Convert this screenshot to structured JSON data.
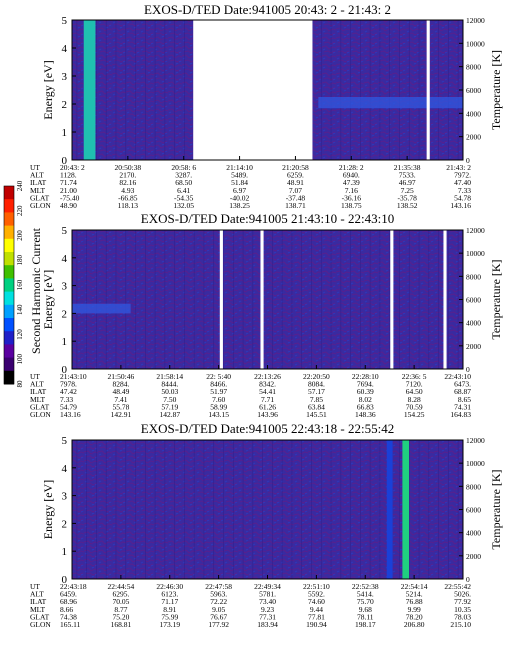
{
  "colorbar": {
    "label": "Second Harmonic Current",
    "ticks": [
      "80",
      "100",
      "120",
      "140",
      "160",
      "180",
      "200",
      "220",
      "240"
    ],
    "colors": [
      "#000000",
      "#3a0070",
      "#5a00a0",
      "#2020c8",
      "#0050ff",
      "#00a0ff",
      "#00e0e0",
      "#00d080",
      "#40c000",
      "#c0e000",
      "#ffff00",
      "#ffb000",
      "#ff6000",
      "#ff2000",
      "#c00000"
    ]
  },
  "row_labels": [
    "UT",
    "ALT",
    "ILAT",
    "MLT",
    "GLAT",
    "GLON"
  ],
  "chart_data": [
    {
      "type": "heatmap",
      "title": "EXOS-D/TED   Date:941005  20:43: 2 - 21:43: 2",
      "ylabel": "Energy [eV]",
      "y2label": "Temperature [K]",
      "ylim": [
        0,
        5
      ],
      "y_ticks": [
        "0",
        "1",
        "2",
        "3",
        "4",
        "5"
      ],
      "y2lim": [
        0,
        12000
      ],
      "y2_ticks": [
        "0",
        "2000",
        "4000",
        "6000",
        "8000",
        "10000",
        "12000"
      ],
      "background": "#3a2aa0",
      "data_gaps": [
        [
          0.31,
          0.615
        ],
        [
          0.907,
          0.915
        ]
      ],
      "bands": [
        {
          "x": [
            0.03,
            0.06
          ],
          "y": [
            0,
            5
          ],
          "color": "#20c0b0"
        }
      ],
      "streaks": [
        {
          "x": [
            0.63,
            1.0
          ],
          "y": [
            1.85,
            2.25
          ],
          "color": "#3058e0"
        }
      ],
      "columns": [
        {
          "UT": "20:43: 2",
          "ALT": "1128.",
          "ILAT": "71.74",
          "MLT": "21.00",
          "GLAT": "-75.40",
          "GLON": "48.90"
        },
        {
          "UT": "20:50:38",
          "ALT": "2170.",
          "ILAT": "82.16",
          "MLT": "4.93",
          "GLAT": "-66.85",
          "GLON": "118.13"
        },
        {
          "UT": "20:58: 6",
          "ALT": "3287.",
          "ILAT": "68.50",
          "MLT": "6.41",
          "GLAT": "-54.35",
          "GLON": "132.05"
        },
        {
          "UT": "21:14:10",
          "ALT": "5489.",
          "ILAT": "51.84",
          "MLT": "6.97",
          "GLAT": "-40.02",
          "GLON": "138.25"
        },
        {
          "UT": "21:20:58",
          "ALT": "6259.",
          "ILAT": "48.91",
          "MLT": "7.07",
          "GLAT": "-37.48",
          "GLON": "138.71"
        },
        {
          "UT": "21:28: 2",
          "ALT": "6940.",
          "ILAT": "47.39",
          "MLT": "7.16",
          "GLAT": "-36.16",
          "GLON": "138.75"
        },
        {
          "UT": "21:35:38",
          "ALT": "7533.",
          "ILAT": "46.97",
          "MLT": "7.25",
          "GLAT": "-35.78",
          "GLON": "138.52"
        },
        {
          "UT": "21:43: 2",
          "ALT": "7972.",
          "ILAT": "47.40",
          "MLT": "7.33",
          "GLAT": "54.78",
          "GLON": "143.16"
        }
      ]
    },
    {
      "type": "heatmap",
      "title": "EXOS-D/TED   Date:941005  21:43:10 - 22:43:10",
      "ylabel": "Energy [eV]",
      "y2label": "Temperature [K]",
      "ylim": [
        0,
        5
      ],
      "y_ticks": [
        "0",
        "1",
        "2",
        "3",
        "4",
        "5"
      ],
      "y2lim": [
        0,
        12000
      ],
      "y2_ticks": [
        "0",
        "2000",
        "4000",
        "6000",
        "8000",
        "10000",
        "12000"
      ],
      "background": "#3a2aa0",
      "data_gaps": [
        [
          0.378,
          0.386
        ],
        [
          0.482,
          0.49
        ],
        [
          0.814,
          0.822
        ],
        [
          0.95,
          0.958
        ]
      ],
      "bands": [],
      "streaks": [
        {
          "x": [
            0.0,
            0.15
          ],
          "y": [
            2.0,
            2.35
          ],
          "color": "#3058e0"
        }
      ],
      "columns": [
        {
          "UT": "21:43:10",
          "ALT": "7978.",
          "ILAT": "47.42",
          "MLT": "7.33",
          "GLAT": "54.79",
          "GLON": "143.16"
        },
        {
          "UT": "21:50:46",
          "ALT": "8284.",
          "ILAT": "48.49",
          "MLT": "7.41",
          "GLAT": "55.78",
          "GLON": "142.91"
        },
        {
          "UT": "21:58:14",
          "ALT": "8444.",
          "ILAT": "50.03",
          "MLT": "7.50",
          "GLAT": "57.19",
          "GLON": "142.87"
        },
        {
          "UT": "22: 5:40",
          "ALT": "8466.",
          "ILAT": "51.97",
          "MLT": "7.60",
          "GLAT": "58.99",
          "GLON": "143.15"
        },
        {
          "UT": "22:13:26",
          "ALT": "8342.",
          "ILAT": "54.41",
          "MLT": "7.71",
          "GLAT": "61.26",
          "GLON": "143.96"
        },
        {
          "UT": "22:20:50",
          "ALT": "8084.",
          "ILAT": "57.17",
          "MLT": "7.85",
          "GLAT": "63.84",
          "GLON": "145.51"
        },
        {
          "UT": "22:28:10",
          "ALT": "7694.",
          "ILAT": "60.39",
          "MLT": "8.02",
          "GLAT": "66.83",
          "GLON": "148.36"
        },
        {
          "UT": "22:36: 5",
          "ALT": "7120.",
          "ILAT": "64.50",
          "MLT": "8.28",
          "GLAT": "70.59",
          "GLON": "154.25"
        },
        {
          "UT": "22:43:10",
          "ALT": "6473.",
          "ILAT": "68.87",
          "MLT": "8.65",
          "GLAT": "74.31",
          "GLON": "164.83"
        }
      ]
    },
    {
      "type": "heatmap",
      "title": "EXOS-D/TED   Date:941005  22:43:18 - 22:55:42",
      "ylabel": "Energy [eV]",
      "y2label": "Temperature [K]",
      "ylim": [
        0,
        5
      ],
      "y_ticks": [
        "0",
        "1",
        "2",
        "3",
        "4",
        "5"
      ],
      "y2lim": [
        0,
        12000
      ],
      "y2_ticks": [
        "0",
        "2000",
        "4000",
        "6000",
        "8000",
        "10000",
        "12000"
      ],
      "background": "#3a2aa0",
      "data_gaps": [],
      "bands": [
        {
          "x": [
            0.805,
            0.82
          ],
          "y": [
            0,
            5
          ],
          "color": "#1a40d8"
        },
        {
          "x": [
            0.845,
            0.862
          ],
          "y": [
            0,
            5
          ],
          "color": "#20d080"
        }
      ],
      "streaks": [],
      "columns": [
        {
          "UT": "22:43:18",
          "ALT": "6459.",
          "ILAT": "68.96",
          "MLT": "8.66",
          "GLAT": "74.38",
          "GLON": "165.11"
        },
        {
          "UT": "22:44:54",
          "ALT": "6295.",
          "ILAT": "70.05",
          "MLT": "8.77",
          "GLAT": "75.20",
          "GLON": "168.81"
        },
        {
          "UT": "22:46:30",
          "ALT": "6123.",
          "ILAT": "71.17",
          "MLT": "8.91",
          "GLAT": "75.99",
          "GLON": "173.19"
        },
        {
          "UT": "22:47:58",
          "ALT": "5963.",
          "ILAT": "72.22",
          "MLT": "9.05",
          "GLAT": "76.67",
          "GLON": "177.92"
        },
        {
          "UT": "22:49:34",
          "ALT": "5781.",
          "ILAT": "73.40",
          "MLT": "9.23",
          "GLAT": "77.31",
          "GLON": "183.94"
        },
        {
          "UT": "22:51:10",
          "ALT": "5592.",
          "ILAT": "74.60",
          "MLT": "9.44",
          "GLAT": "77.81",
          "GLON": "190.94"
        },
        {
          "UT": "22:52:38",
          "ALT": "5414.",
          "ILAT": "75.70",
          "MLT": "9.68",
          "GLAT": "78.11",
          "GLON": "198.17"
        },
        {
          "UT": "22:54:14",
          "ALT": "5214.",
          "ILAT": "76.88",
          "MLT": "9.99",
          "GLAT": "78.20",
          "GLON": "206.80"
        },
        {
          "UT": "22:55:42",
          "ALT": "5026.",
          "ILAT": "77.92",
          "MLT": "10.35",
          "GLAT": "78.03",
          "GLON": "215.10"
        }
      ]
    }
  ]
}
